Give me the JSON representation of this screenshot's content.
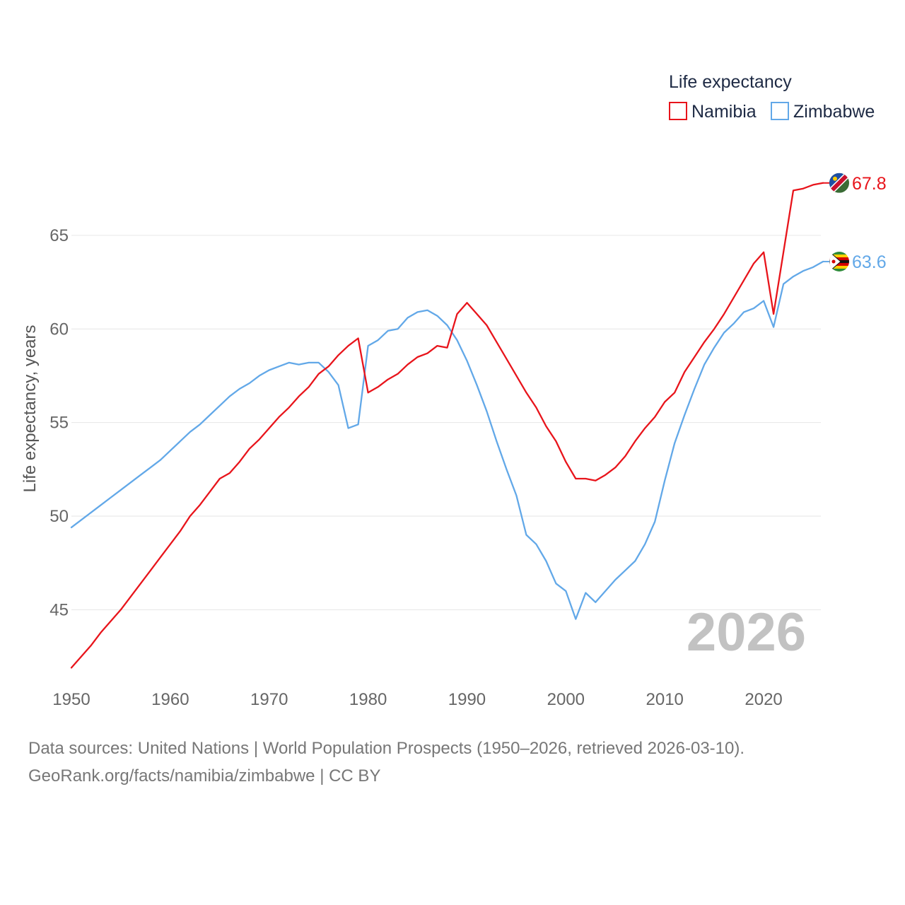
{
  "chart_data": {
    "type": "line",
    "title": "Life expectancy",
    "ylabel": "Life expectancy, years",
    "xlabel": "",
    "year_label": "2026",
    "xlim": [
      1950,
      2026
    ],
    "ylim": [
      41.5,
      69
    ],
    "x_ticks": [
      1950,
      1960,
      1970,
      1980,
      1990,
      2000,
      2010,
      2020
    ],
    "y_ticks": [
      45,
      50,
      55,
      60,
      65
    ],
    "grid": true,
    "legend_position": "top-right",
    "x": [
      1950,
      1951,
      1952,
      1953,
      1954,
      1955,
      1956,
      1957,
      1958,
      1959,
      1960,
      1961,
      1962,
      1963,
      1964,
      1965,
      1966,
      1967,
      1968,
      1969,
      1970,
      1971,
      1972,
      1973,
      1974,
      1975,
      1976,
      1977,
      1978,
      1979,
      1980,
      1981,
      1982,
      1983,
      1984,
      1985,
      1986,
      1987,
      1988,
      1989,
      1990,
      1991,
      1992,
      1993,
      1994,
      1995,
      1996,
      1997,
      1998,
      1999,
      2000,
      2001,
      2002,
      2003,
      2004,
      2005,
      2006,
      2007,
      2008,
      2009,
      2010,
      2011,
      2012,
      2013,
      2014,
      2015,
      2016,
      2017,
      2018,
      2019,
      2020,
      2021,
      2022,
      2023,
      2024,
      2025,
      2026
    ],
    "series": [
      {
        "name": "Namibia",
        "color": "#e8141b",
        "end_label": "67.8",
        "flag": "namibia-flag-icon",
        "values": [
          41.9,
          42.5,
          43.1,
          43.8,
          44.4,
          45.0,
          45.7,
          46.4,
          47.1,
          47.8,
          48.5,
          49.2,
          50.0,
          50.6,
          51.3,
          52.0,
          52.3,
          52.9,
          53.6,
          54.1,
          54.7,
          55.3,
          55.8,
          56.4,
          56.9,
          57.6,
          58.0,
          58.6,
          59.1,
          59.5,
          56.6,
          56.9,
          57.3,
          57.6,
          58.1,
          58.5,
          58.7,
          59.1,
          59.0,
          60.8,
          61.4,
          60.8,
          60.2,
          59.3,
          58.4,
          57.5,
          56.6,
          55.8,
          54.8,
          54.0,
          52.9,
          52.0,
          52.0,
          51.9,
          52.2,
          52.6,
          53.2,
          54.0,
          54.7,
          55.3,
          56.1,
          56.6,
          57.7,
          58.5,
          59.3,
          60.0,
          60.8,
          61.7,
          62.6,
          63.5,
          64.1,
          60.8,
          64.1,
          67.4,
          67.5,
          67.7,
          67.8
        ]
      },
      {
        "name": "Zimbabwe",
        "color": "#62a8e8",
        "end_label": "63.6",
        "flag": "zimbabwe-flag-icon",
        "values": [
          49.4,
          49.8,
          50.2,
          50.6,
          51.0,
          51.4,
          51.8,
          52.2,
          52.6,
          53.0,
          53.5,
          54.0,
          54.5,
          54.9,
          55.4,
          55.9,
          56.4,
          56.8,
          57.1,
          57.5,
          57.8,
          58.0,
          58.2,
          58.1,
          58.2,
          58.2,
          57.7,
          57.0,
          54.7,
          54.9,
          59.1,
          59.4,
          59.9,
          60.0,
          60.6,
          60.9,
          61.0,
          60.7,
          60.2,
          59.4,
          58.3,
          57.0,
          55.6,
          54.0,
          52.5,
          51.1,
          49.0,
          48.5,
          47.6,
          46.4,
          46.0,
          44.5,
          45.9,
          45.4,
          46.0,
          46.6,
          47.1,
          47.6,
          48.5,
          49.7,
          51.9,
          53.9,
          55.4,
          56.8,
          58.1,
          59.0,
          59.8,
          60.3,
          60.9,
          61.1,
          61.5,
          60.1,
          62.4,
          62.8,
          63.1,
          63.3,
          63.6
        ]
      }
    ]
  },
  "footer": {
    "sources": "Data sources: United Nations | World Population Prospects (1950–2026, retrieved 2026-03-10).",
    "credit": "GeoRank.org/facts/namibia/zimbabwe | CC BY"
  }
}
